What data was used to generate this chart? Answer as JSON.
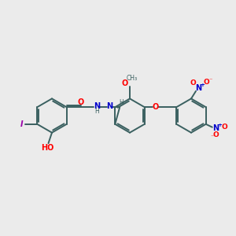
{
  "background_color": "#ebebeb",
  "bond_color": "#3a6060",
  "atom_colors": {
    "O": "#ff0000",
    "N": "#0000cc",
    "I": "#9900aa",
    "H": "#3a6060",
    "C": "#3a6060"
  },
  "figsize": [
    3.0,
    3.0
  ],
  "dpi": 100,
  "xlim": [
    0,
    10
  ],
  "ylim": [
    0,
    10
  ]
}
